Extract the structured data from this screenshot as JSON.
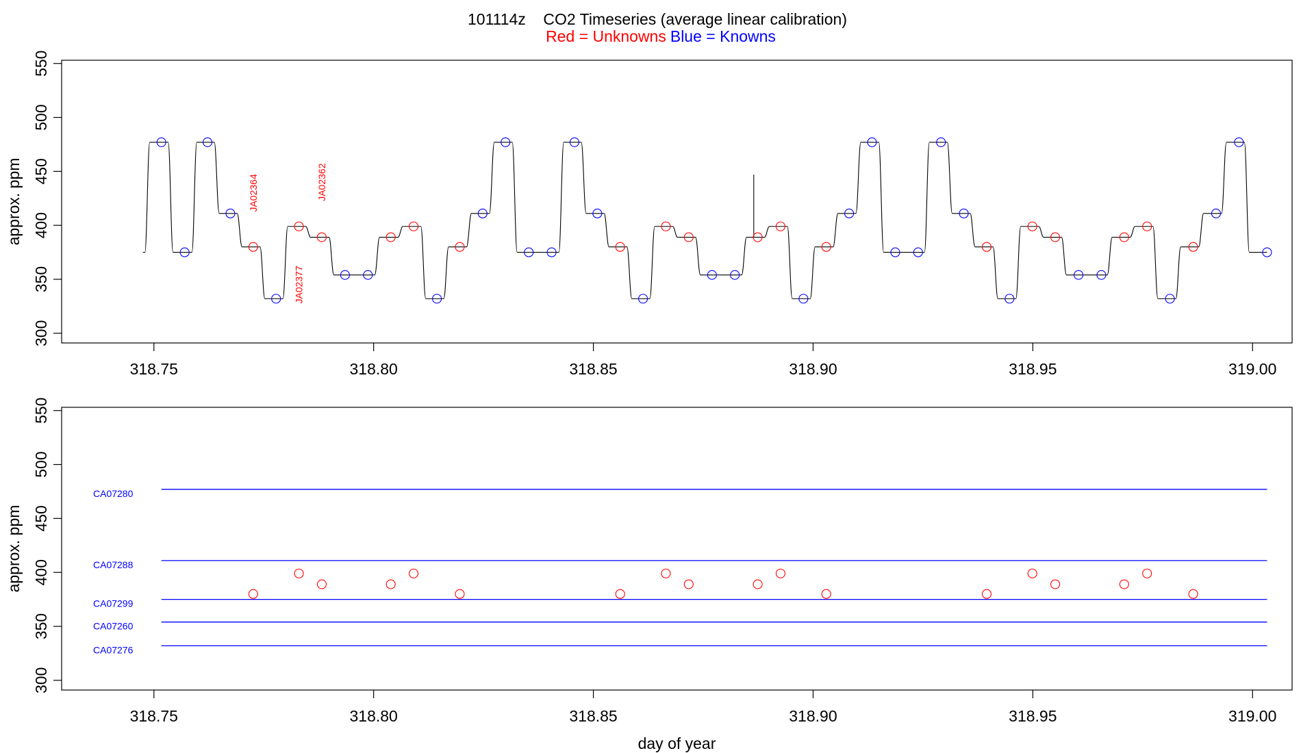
{
  "title": "101114z    CO2 Timeseries (average linear calibration)",
  "legend": {
    "red_label": "Red = Unknowns",
    "blue_label": "Blue = Knowns",
    "red_color": "#ff0000",
    "blue_color": "#0000ff"
  },
  "chart_data": [
    {
      "type": "line",
      "panel": "top",
      "ylabel": "approx. ppm",
      "xlabel": "",
      "xlim": [
        318.729,
        319.009
      ],
      "ylim": [
        291,
        553
      ],
      "x_ticks": [
        318.75,
        318.8,
        318.85,
        318.9,
        318.95,
        319.0
      ],
      "x_tick_labels": [
        "318.75",
        "318.80",
        "318.85",
        "318.90",
        "318.95",
        "319.00"
      ],
      "y_ticks": [
        300,
        350,
        400,
        450,
        500,
        550
      ],
      "y_tick_labels": [
        "300",
        "350",
        "400",
        "450",
        "500",
        "550"
      ],
      "line_color": "#000000",
      "series": [
        {
          "kind": "step-trace",
          "steps": [
            {
              "x0": 318.7475,
              "x1": 318.7485,
              "y": 375
            },
            {
              "x0": 318.7485,
              "x1": 318.7538,
              "y": 477
            },
            {
              "x0": 318.7538,
              "x1": 318.7592,
              "y": 375
            },
            {
              "x0": 318.7592,
              "x1": 318.7643,
              "y": 477
            },
            {
              "x0": 318.7643,
              "x1": 318.7695,
              "y": 411
            },
            {
              "x0": 318.7695,
              "x1": 318.7747,
              "y": 380
            },
            {
              "x0": 318.7747,
              "x1": 318.7799,
              "y": 332
            },
            {
              "x0": 318.7799,
              "x1": 318.7851,
              "y": 399
            },
            {
              "x0": 318.7851,
              "x1": 318.7904,
              "y": 389
            },
            {
              "x0": 318.7904,
              "x1": 318.8008,
              "y": 354
            },
            {
              "x0": 318.8008,
              "x1": 318.8061,
              "y": 389
            },
            {
              "x0": 318.8061,
              "x1": 318.8113,
              "y": 399
            },
            {
              "x0": 318.8113,
              "x1": 318.8165,
              "y": 332
            },
            {
              "x0": 318.8165,
              "x1": 318.8217,
              "y": 380
            },
            {
              "x0": 318.8217,
              "x1": 318.8269,
              "y": 411
            },
            {
              "x0": 318.8269,
              "x1": 318.8321,
              "y": 477
            },
            {
              "x0": 318.8321,
              "x1": 318.8427,
              "y": 375
            },
            {
              "x0": 318.8427,
              "x1": 318.8478,
              "y": 477
            },
            {
              "x0": 318.8478,
              "x1": 318.853,
              "y": 411
            },
            {
              "x0": 318.853,
              "x1": 318.8582,
              "y": 380
            },
            {
              "x0": 318.8582,
              "x1": 318.8634,
              "y": 332
            },
            {
              "x0": 318.8634,
              "x1": 318.8686,
              "y": 399
            },
            {
              "x0": 318.8686,
              "x1": 318.8738,
              "y": 389
            },
            {
              "x0": 318.8738,
              "x1": 318.8843,
              "y": 354
            },
            {
              "x0": 318.8843,
              "x1": 318.8895,
              "y": 389
            },
            {
              "x0": 318.8895,
              "x1": 318.8947,
              "y": 399
            },
            {
              "x0": 318.8947,
              "x1": 318.8999,
              "y": 332
            },
            {
              "x0": 318.8999,
              "x1": 318.9051,
              "y": 380
            },
            {
              "x0": 318.9051,
              "x1": 318.9103,
              "y": 411
            },
            {
              "x0": 318.9103,
              "x1": 318.9155,
              "y": 477
            },
            {
              "x0": 318.9155,
              "x1": 318.9259,
              "y": 375
            },
            {
              "x0": 318.9259,
              "x1": 318.9311,
              "y": 477
            },
            {
              "x0": 318.9311,
              "x1": 318.9363,
              "y": 411
            },
            {
              "x0": 318.9363,
              "x1": 318.9415,
              "y": 380
            },
            {
              "x0": 318.9415,
              "x1": 318.9467,
              "y": 332
            },
            {
              "x0": 318.9467,
              "x1": 318.9519,
              "y": 399
            },
            {
              "x0": 318.9519,
              "x1": 318.9571,
              "y": 389
            },
            {
              "x0": 318.9571,
              "x1": 318.9675,
              "y": 354
            },
            {
              "x0": 318.9675,
              "x1": 318.9727,
              "y": 389
            },
            {
              "x0": 318.9727,
              "x1": 318.9779,
              "y": 399
            },
            {
              "x0": 318.9779,
              "x1": 318.9831,
              "y": 332
            },
            {
              "x0": 318.9831,
              "x1": 318.9883,
              "y": 380
            },
            {
              "x0": 318.9883,
              "x1": 318.9935,
              "y": 411
            },
            {
              "x0": 318.9935,
              "x1": 318.9987,
              "y": 477
            },
            {
              "x0": 318.9987,
              "x1": 319.0033,
              "y": 375
            }
          ],
          "spike": {
            "x": 318.8865,
            "y0": 389,
            "y1": 447
          }
        },
        {
          "kind": "points",
          "name": "Knowns",
          "color": "#0000ff",
          "points": [
            {
              "x": 318.7517,
              "y": 477
            },
            {
              "x": 318.757,
              "y": 375
            },
            {
              "x": 318.7622,
              "y": 477
            },
            {
              "x": 318.7674,
              "y": 411
            },
            {
              "x": 318.7778,
              "y": 332
            },
            {
              "x": 318.7935,
              "y": 354
            },
            {
              "x": 318.7987,
              "y": 354
            },
            {
              "x": 318.8144,
              "y": 332
            },
            {
              "x": 318.8248,
              "y": 411
            },
            {
              "x": 318.83,
              "y": 477
            },
            {
              "x": 318.8353,
              "y": 375
            },
            {
              "x": 318.8405,
              "y": 375
            },
            {
              "x": 318.8457,
              "y": 477
            },
            {
              "x": 318.8509,
              "y": 411
            },
            {
              "x": 318.8613,
              "y": 332
            },
            {
              "x": 318.877,
              "y": 354
            },
            {
              "x": 318.8822,
              "y": 354
            },
            {
              "x": 318.8978,
              "y": 332
            },
            {
              "x": 318.9082,
              "y": 411
            },
            {
              "x": 318.9134,
              "y": 477
            },
            {
              "x": 318.9187,
              "y": 375
            },
            {
              "x": 318.9239,
              "y": 375
            },
            {
              "x": 318.9291,
              "y": 477
            },
            {
              "x": 318.9343,
              "y": 411
            },
            {
              "x": 318.9447,
              "y": 332
            },
            {
              "x": 318.9604,
              "y": 354
            },
            {
              "x": 318.9656,
              "y": 354
            },
            {
              "x": 318.9812,
              "y": 332
            },
            {
              "x": 318.9917,
              "y": 411
            },
            {
              "x": 318.9969,
              "y": 477
            },
            {
              "x": 319.0033,
              "y": 375
            }
          ]
        },
        {
          "kind": "points",
          "name": "Unknowns",
          "color": "#ff0000",
          "points": [
            {
              "x": 318.7726,
              "y": 380
            },
            {
              "x": 318.783,
              "y": 399
            },
            {
              "x": 318.7882,
              "y": 389
            },
            {
              "x": 318.8039,
              "y": 389
            },
            {
              "x": 318.8091,
              "y": 399
            },
            {
              "x": 318.8196,
              "y": 380
            },
            {
              "x": 318.8561,
              "y": 380
            },
            {
              "x": 318.8665,
              "y": 399
            },
            {
              "x": 318.8717,
              "y": 389
            },
            {
              "x": 318.8874,
              "y": 389
            },
            {
              "x": 318.8926,
              "y": 399
            },
            {
              "x": 318.903,
              "y": 380
            },
            {
              "x": 318.9395,
              "y": 380
            },
            {
              "x": 318.9499,
              "y": 399
            },
            {
              "x": 318.9551,
              "y": 389
            },
            {
              "x": 318.9708,
              "y": 389
            },
            {
              "x": 318.976,
              "y": 399
            },
            {
              "x": 318.9865,
              "y": 380
            }
          ]
        }
      ],
      "annotations": [
        {
          "text": "JA02364",
          "x": 318.7726,
          "y": 430,
          "color": "#ff0000",
          "rotation": -90
        },
        {
          "text": "JA02377",
          "x": 318.783,
          "y": 345,
          "color": "#ff0000",
          "rotation": -90
        },
        {
          "text": "JA02362",
          "x": 318.7882,
          "y": 440,
          "color": "#ff0000",
          "rotation": -90
        }
      ]
    },
    {
      "type": "line",
      "panel": "bottom",
      "ylabel": "approx. ppm",
      "xlabel": "day of year",
      "xlim": [
        318.729,
        319.009
      ],
      "ylim": [
        291,
        553
      ],
      "x_ticks": [
        318.75,
        318.8,
        318.85,
        318.9,
        318.95,
        319.0
      ],
      "x_tick_labels": [
        "318.75",
        "318.80",
        "318.85",
        "318.90",
        "318.95",
        "319.00"
      ],
      "y_ticks": [
        300,
        350,
        400,
        450,
        500,
        550
      ],
      "y_tick_labels": [
        "300",
        "350",
        "400",
        "450",
        "500",
        "550"
      ],
      "series": [
        {
          "kind": "hline",
          "name": "CA07280",
          "color": "#0000ff",
          "x0": 318.7517,
          "x1": 319.0033,
          "y": 477
        },
        {
          "kind": "hline",
          "name": "CA07288",
          "color": "#0000ff",
          "x0": 318.7517,
          "x1": 319.0033,
          "y": 411
        },
        {
          "kind": "hline",
          "name": "CA07299",
          "color": "#0000ff",
          "x0": 318.7517,
          "x1": 319.0033,
          "y": 375
        },
        {
          "kind": "hline",
          "name": "CA07260",
          "color": "#0000ff",
          "x0": 318.7517,
          "x1": 319.0033,
          "y": 354
        },
        {
          "kind": "hline",
          "name": "CA07276",
          "color": "#0000ff",
          "x0": 318.7517,
          "x1": 319.0033,
          "y": 332
        },
        {
          "kind": "points",
          "name": "Unknowns",
          "color": "#ff0000",
          "points": [
            {
              "x": 318.7726,
              "y": 380
            },
            {
              "x": 318.783,
              "y": 399
            },
            {
              "x": 318.7882,
              "y": 389
            },
            {
              "x": 318.8039,
              "y": 389
            },
            {
              "x": 318.8091,
              "y": 399
            },
            {
              "x": 318.8196,
              "y": 380
            },
            {
              "x": 318.8561,
              "y": 380
            },
            {
              "x": 318.8665,
              "y": 399
            },
            {
              "x": 318.8717,
              "y": 389
            },
            {
              "x": 318.8874,
              "y": 389
            },
            {
              "x": 318.8926,
              "y": 399
            },
            {
              "x": 318.903,
              "y": 380
            },
            {
              "x": 318.9395,
              "y": 380
            },
            {
              "x": 318.9499,
              "y": 399
            },
            {
              "x": 318.9551,
              "y": 389
            },
            {
              "x": 318.9708,
              "y": 389
            },
            {
              "x": 318.976,
              "y": 399
            },
            {
              "x": 318.9865,
              "y": 380
            }
          ]
        }
      ]
    }
  ]
}
